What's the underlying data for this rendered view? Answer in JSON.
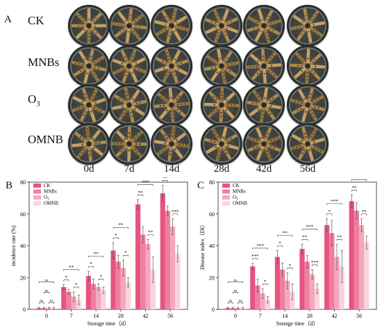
{
  "panel_a": {
    "letter": "A",
    "rows": [
      "CK",
      "MNBs",
      "O3",
      "OMNB"
    ],
    "days": [
      "0d",
      "7d",
      "14d",
      "28d",
      "42d",
      "56d"
    ],
    "spoke_colors": [
      "#c7a063",
      "#b08a4e",
      "#a07a40"
    ],
    "lesion_color": "#6b4f2a"
  },
  "panel_b": {
    "letter": "B"
  },
  "panel_c": {
    "letter": "C"
  },
  "chart_data": [
    {
      "type": "bar",
      "categories": [
        "0",
        "7",
        "14",
        "28",
        "42",
        "56"
      ],
      "xlabel": "Storage time（d）",
      "ylabel": "incidence rate (%)",
      "ylim": [
        0,
        80
      ],
      "yticks": [
        0,
        20,
        40,
        60,
        80
      ],
      "legend": "top-left",
      "series": [
        {
          "name": "CK",
          "color": "#e75480",
          "values": [
            0.8,
            14,
            21,
            37,
            66,
            73
          ],
          "errors": [
            0.5,
            1.5,
            3,
            5,
            3,
            5
          ]
        },
        {
          "name": "MNBs",
          "color": "#ef7f9f",
          "values": [
            0.8,
            11,
            16,
            30,
            47,
            62
          ],
          "errors": [
            0.5,
            1.5,
            3,
            4,
            5,
            3
          ]
        },
        {
          "name": "O3",
          "color": "#f5a7bd",
          "values": [
            0.8,
            8,
            14,
            26,
            41,
            52
          ],
          "errors": [
            0.5,
            3,
            2,
            5,
            3,
            5
          ]
        },
        {
          "name": "OMNB",
          "color": "#fad3de",
          "values": [
            0.8,
            6,
            12,
            17,
            25,
            35
          ],
          "errors": [
            0.5,
            3,
            2,
            3,
            8,
            5
          ]
        }
      ],
      "significance": [
        {
          "cat": 0,
          "a": 0,
          "b": 1,
          "label": "ns",
          "level": 0
        },
        {
          "cat": 0,
          "a": 1,
          "b": 2,
          "label": "ns",
          "level": 1
        },
        {
          "cat": 0,
          "a": 2,
          "b": 3,
          "label": "ns",
          "level": 0
        },
        {
          "cat": 0,
          "a": 0,
          "b": 3,
          "label": "ns",
          "level": 2
        },
        {
          "cat": 1,
          "a": 0,
          "b": 1,
          "label": "*",
          "level": 0
        },
        {
          "cat": 1,
          "a": 2,
          "b": 3,
          "label": "*",
          "level": 0
        },
        {
          "cat": 1,
          "a": 0,
          "b": 3,
          "label": "**",
          "level": 1
        },
        {
          "cat": 2,
          "a": 0,
          "b": 1,
          "label": "*",
          "level": 0
        },
        {
          "cat": 2,
          "a": 2,
          "b": 3,
          "label": "*",
          "level": 0
        },
        {
          "cat": 2,
          "a": 0,
          "b": 3,
          "label": "**",
          "level": 1
        },
        {
          "cat": 3,
          "a": 0,
          "b": 1,
          "label": "*",
          "level": 0
        },
        {
          "cat": 3,
          "a": 2,
          "b": 3,
          "label": "*",
          "level": 0
        },
        {
          "cat": 3,
          "a": 0,
          "b": 3,
          "label": "**",
          "level": 1
        },
        {
          "cat": 4,
          "a": 0,
          "b": 1,
          "label": "**",
          "level": 0
        },
        {
          "cat": 4,
          "a": 2,
          "b": 3,
          "label": "**",
          "level": 0
        },
        {
          "cat": 4,
          "a": 0,
          "b": 3,
          "label": "***",
          "level": 1
        },
        {
          "cat": 5,
          "a": 0,
          "b": 1,
          "label": "**",
          "level": 0
        },
        {
          "cat": 5,
          "a": 2,
          "b": 3,
          "label": "***",
          "level": 0
        },
        {
          "cat": 5,
          "a": 0,
          "b": 3,
          "label": "***",
          "level": 1
        }
      ]
    },
    {
      "type": "bar",
      "categories": [
        "0",
        "7",
        "14",
        "28",
        "42",
        "56"
      ],
      "xlabel": "Storage time（d）",
      "ylabel": "Disease index（DI）",
      "ylim": [
        0,
        80
      ],
      "yticks": [
        0,
        20,
        40,
        60,
        80
      ],
      "legend": "top-left",
      "series": [
        {
          "name": "CK",
          "color": "#e75480",
          "values": [
            0.8,
            27,
            33,
            38,
            53,
            68
          ],
          "errors": [
            0.5,
            2,
            4,
            3,
            4,
            4
          ]
        },
        {
          "name": "MNBs",
          "color": "#ef7f9f",
          "values": [
            0.8,
            15,
            25,
            30,
            48,
            62
          ],
          "errors": [
            0.5,
            4,
            4,
            4,
            8,
            5
          ]
        },
        {
          "name": "O3",
          "color": "#f5a7bd",
          "values": [
            0.8,
            10,
            18,
            22,
            33,
            53
          ],
          "errors": [
            0.5,
            3,
            5,
            3,
            8,
            4
          ]
        },
        {
          "name": "OMNB",
          "color": "#fad3de",
          "values": [
            0.8,
            6,
            11,
            13,
            27,
            42
          ],
          "errors": [
            0.5,
            2,
            5,
            3,
            10,
            4
          ]
        }
      ],
      "significance": [
        {
          "cat": 0,
          "a": 0,
          "b": 1,
          "label": "ns",
          "level": 0
        },
        {
          "cat": 0,
          "a": 1,
          "b": 2,
          "label": "ns",
          "level": 1
        },
        {
          "cat": 0,
          "a": 2,
          "b": 3,
          "label": "ns",
          "level": 0
        },
        {
          "cat": 0,
          "a": 0,
          "b": 3,
          "label": "ns",
          "level": 2
        },
        {
          "cat": 1,
          "a": 0,
          "b": 1,
          "label": "***",
          "level": 0
        },
        {
          "cat": 1,
          "a": 2,
          "b": 3,
          "label": "*",
          "level": 0
        },
        {
          "cat": 1,
          "a": 0,
          "b": 3,
          "label": "***",
          "level": 1
        },
        {
          "cat": 2,
          "a": 0,
          "b": 1,
          "label": "*",
          "level": 0
        },
        {
          "cat": 2,
          "a": 2,
          "b": 3,
          "label": "*",
          "level": 0
        },
        {
          "cat": 2,
          "a": 0,
          "b": 3,
          "label": "**",
          "level": 1
        },
        {
          "cat": 3,
          "a": 0,
          "b": 1,
          "label": "**",
          "level": 0
        },
        {
          "cat": 3,
          "a": 2,
          "b": 3,
          "label": "***",
          "level": 0
        },
        {
          "cat": 3,
          "a": 0,
          "b": 3,
          "label": "***",
          "level": 1
        },
        {
          "cat": 4,
          "a": 0,
          "b": 1,
          "label": "*",
          "level": 0
        },
        {
          "cat": 4,
          "a": 2,
          "b": 3,
          "label": "**",
          "level": 0
        },
        {
          "cat": 4,
          "a": 0,
          "b": 3,
          "label": "***",
          "level": 1
        },
        {
          "cat": 5,
          "a": 0,
          "b": 1,
          "label": "**",
          "level": 0
        },
        {
          "cat": 5,
          "a": 2,
          "b": 3,
          "label": "**",
          "level": 0
        },
        {
          "cat": 5,
          "a": 0,
          "b": 3,
          "label": "***",
          "level": 1
        }
      ]
    }
  ]
}
